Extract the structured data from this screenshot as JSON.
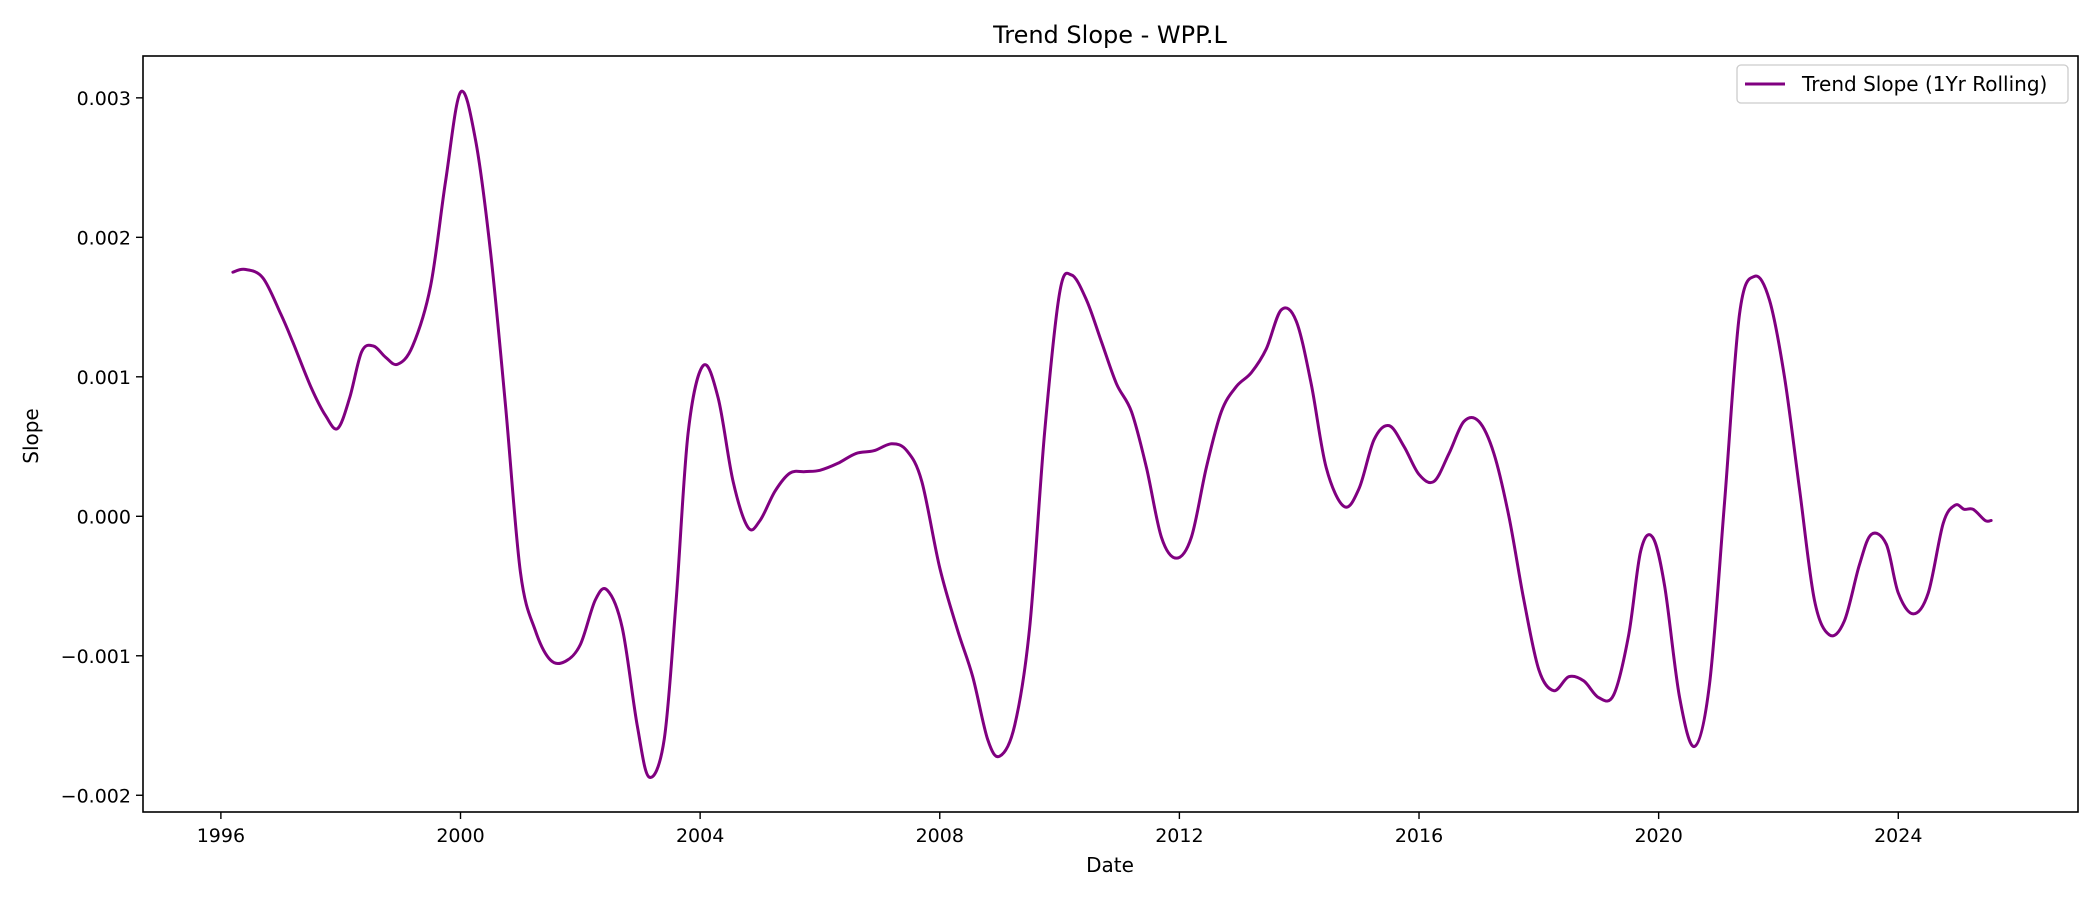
{
  "chart_data": {
    "type": "line",
    "title": "Trend Slope - WPP.L",
    "xlabel": "Date",
    "ylabel": "Slope",
    "xlim": [
      1994.7,
      2027.0
    ],
    "ylim": [
      -0.00212,
      0.0033
    ],
    "x_ticks": [
      1996,
      2000,
      2004,
      2008,
      2012,
      2016,
      2020,
      2024
    ],
    "x_tick_labels": [
      "1996",
      "2000",
      "2004",
      "2008",
      "2012",
      "2016",
      "2020",
      "2024"
    ],
    "y_ticks": [
      -0.002,
      -0.001,
      0.0,
      0.001,
      0.002,
      0.003
    ],
    "y_tick_labels": [
      "−0.002",
      "−0.001",
      "0.000",
      "0.001",
      "0.002",
      "0.003"
    ],
    "grid": false,
    "legend_position": "top-right",
    "series": [
      {
        "name": "Trend Slope (1Yr Rolling)",
        "color": "#800080",
        "points": [
          [
            1996.2,
            0.00175
          ],
          [
            1996.4,
            0.00177
          ],
          [
            1996.7,
            0.00171
          ],
          [
            1997.0,
            0.00145
          ],
          [
            1997.2,
            0.00125
          ],
          [
            1997.5,
            0.00093
          ],
          [
            1997.75,
            0.00072
          ],
          [
            1997.95,
            0.00063
          ],
          [
            1998.15,
            0.00085
          ],
          [
            1998.35,
            0.00118
          ],
          [
            1998.55,
            0.00122
          ],
          [
            1998.75,
            0.00114
          ],
          [
            1998.95,
            0.00109
          ],
          [
            1999.2,
            0.00122
          ],
          [
            1999.5,
            0.00165
          ],
          [
            1999.75,
            0.0024
          ],
          [
            2000.0,
            0.00304
          ],
          [
            2000.25,
            0.0027
          ],
          [
            2000.5,
            0.0019
          ],
          [
            2000.75,
            0.0008
          ],
          [
            2001.0,
            -0.0004
          ],
          [
            2001.25,
            -0.00082
          ],
          [
            2001.5,
            -0.00103
          ],
          [
            2001.75,
            -0.00104
          ],
          [
            2002.0,
            -0.00092
          ],
          [
            2002.25,
            -0.0006
          ],
          [
            2002.45,
            -0.00053
          ],
          [
            2002.7,
            -0.0008
          ],
          [
            2002.95,
            -0.0015
          ],
          [
            2003.15,
            -0.00187
          ],
          [
            2003.4,
            -0.0016
          ],
          [
            2003.6,
            -0.0006
          ],
          [
            2003.8,
            0.0006
          ],
          [
            2004.05,
            0.00108
          ],
          [
            2004.3,
            0.00085
          ],
          [
            2004.55,
            0.00025
          ],
          [
            2004.8,
            -8e-05
          ],
          [
            2005.0,
            -3e-05
          ],
          [
            2005.25,
            0.00018
          ],
          [
            2005.5,
            0.00031
          ],
          [
            2005.75,
            0.00032
          ],
          [
            2006.0,
            0.00033
          ],
          [
            2006.3,
            0.00038
          ],
          [
            2006.6,
            0.00045
          ],
          [
            2006.9,
            0.00047
          ],
          [
            2007.2,
            0.00052
          ],
          [
            2007.45,
            0.00047
          ],
          [
            2007.7,
            0.00025
          ],
          [
            2008.0,
            -0.00037
          ],
          [
            2008.3,
            -0.00082
          ],
          [
            2008.55,
            -0.00115
          ],
          [
            2008.8,
            -0.0016
          ],
          [
            2009.0,
            -0.00172
          ],
          [
            2009.25,
            -0.0015
          ],
          [
            2009.5,
            -0.0008
          ],
          [
            2009.75,
            0.0006
          ],
          [
            2010.0,
            0.0016
          ],
          [
            2010.2,
            0.00173
          ],
          [
            2010.45,
            0.00155
          ],
          [
            2010.7,
            0.00125
          ],
          [
            2010.95,
            0.00095
          ],
          [
            2011.2,
            0.00075
          ],
          [
            2011.45,
            0.00035
          ],
          [
            2011.7,
            -0.00015
          ],
          [
            2011.95,
            -0.0003
          ],
          [
            2012.2,
            -0.00015
          ],
          [
            2012.45,
            0.00035
          ],
          [
            2012.7,
            0.00075
          ],
          [
            2012.95,
            0.00093
          ],
          [
            2013.2,
            0.00103
          ],
          [
            2013.45,
            0.0012
          ],
          [
            2013.7,
            0.00148
          ],
          [
            2013.95,
            0.0014
          ],
          [
            2014.2,
            0.00095
          ],
          [
            2014.45,
            0.00035
          ],
          [
            2014.75,
            7e-05
          ],
          [
            2015.0,
            0.0002
          ],
          [
            2015.25,
            0.00055
          ],
          [
            2015.5,
            0.00065
          ],
          [
            2015.75,
            0.0005
          ],
          [
            2016.0,
            0.0003
          ],
          [
            2016.25,
            0.00025
          ],
          [
            2016.5,
            0.00045
          ],
          [
            2016.75,
            0.00068
          ],
          [
            2017.0,
            0.00068
          ],
          [
            2017.25,
            0.00045
          ],
          [
            2017.5,
            0.0
          ],
          [
            2017.75,
            -0.0006
          ],
          [
            2018.0,
            -0.0011
          ],
          [
            2018.25,
            -0.00125
          ],
          [
            2018.5,
            -0.00115
          ],
          [
            2018.75,
            -0.00118
          ],
          [
            2019.0,
            -0.0013
          ],
          [
            2019.25,
            -0.00128
          ],
          [
            2019.5,
            -0.00085
          ],
          [
            2019.7,
            -0.00025
          ],
          [
            2019.9,
            -0.00015
          ],
          [
            2020.1,
            -0.0005
          ],
          [
            2020.35,
            -0.0013
          ],
          [
            2020.6,
            -0.00165
          ],
          [
            2020.85,
            -0.0012
          ],
          [
            2021.1,
            0.0001
          ],
          [
            2021.35,
            0.00145
          ],
          [
            2021.6,
            0.00172
          ],
          [
            2021.85,
            0.00155
          ],
          [
            2022.1,
            0.001
          ],
          [
            2022.35,
            0.0002
          ],
          [
            2022.6,
            -0.0006
          ],
          [
            2022.85,
            -0.00085
          ],
          [
            2023.1,
            -0.00075
          ],
          [
            2023.35,
            -0.00035
          ],
          [
            2023.55,
            -0.00013
          ],
          [
            2023.8,
            -0.0002
          ],
          [
            2024.0,
            -0.00055
          ],
          [
            2024.25,
            -0.0007
          ],
          [
            2024.5,
            -0.00055
          ],
          [
            2024.75,
            -5e-05
          ],
          [
            2024.95,
            8e-05
          ],
          [
            2025.1,
            5e-05
          ],
          [
            2025.25,
            5e-05
          ],
          [
            2025.45,
            -3e-05
          ],
          [
            2025.55,
            -3e-05
          ]
        ]
      }
    ]
  }
}
